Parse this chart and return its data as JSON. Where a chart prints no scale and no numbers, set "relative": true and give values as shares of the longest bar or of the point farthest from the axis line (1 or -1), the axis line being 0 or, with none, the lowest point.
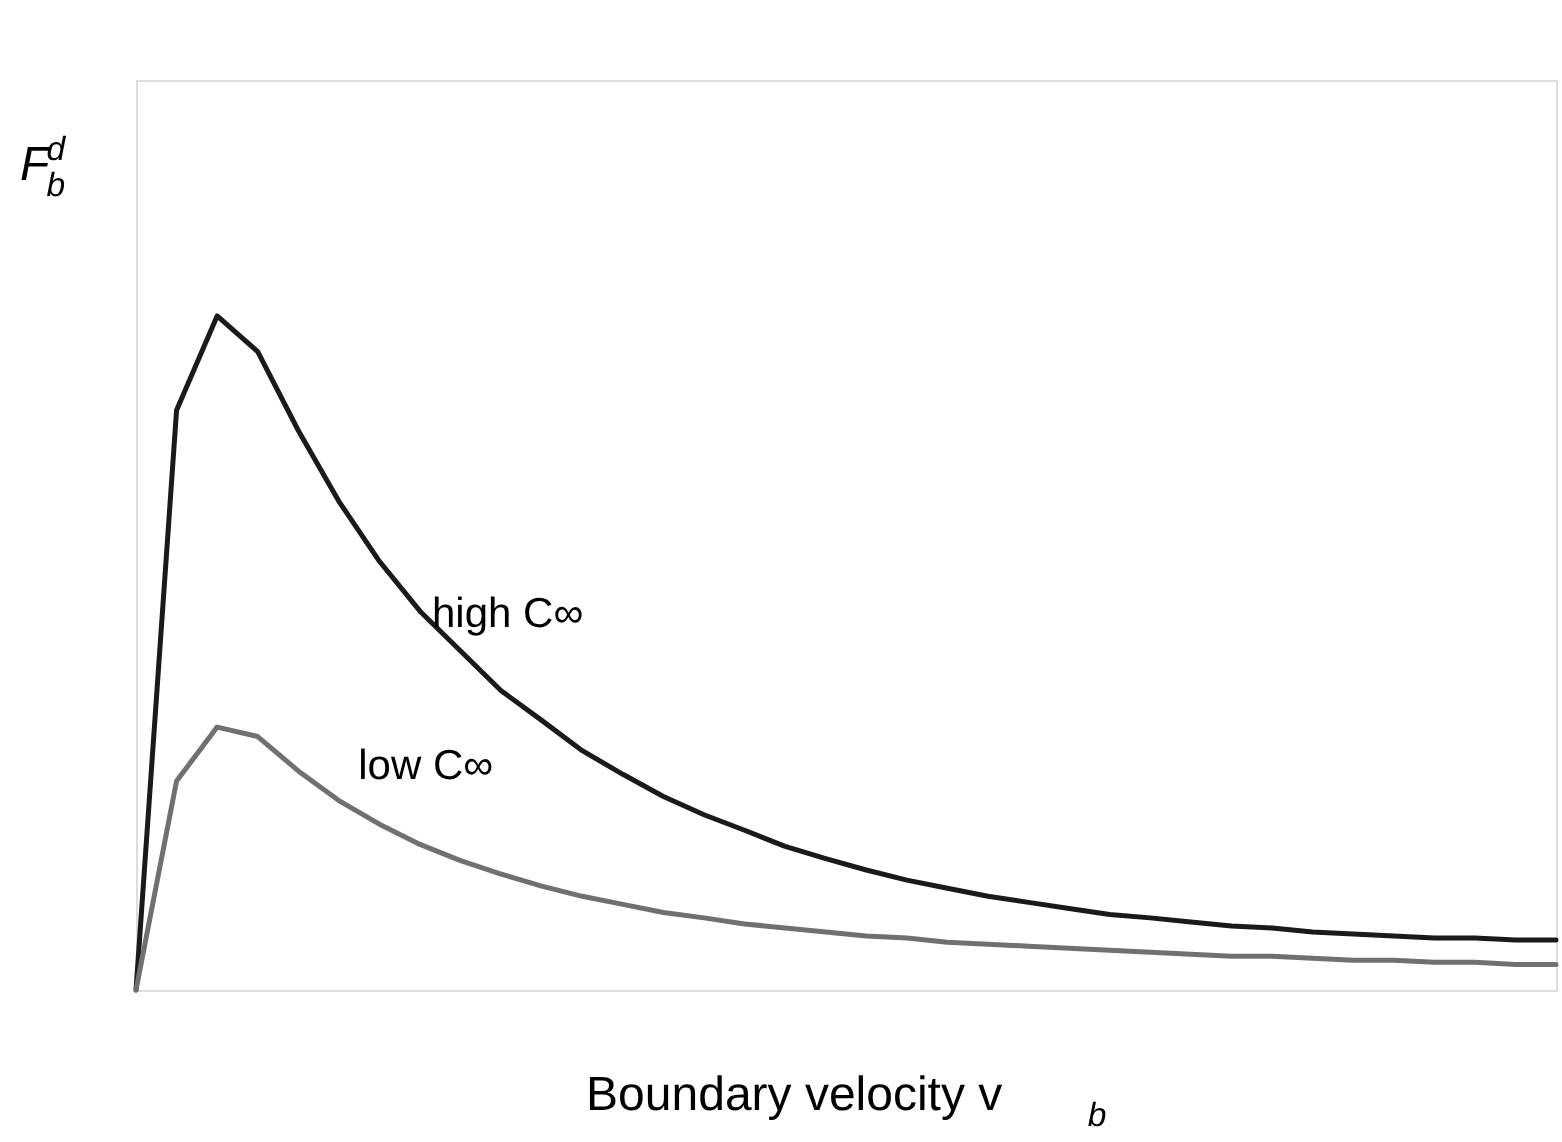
{
  "chart_data": {
    "type": "line",
    "relative": true,
    "xlabel": "Boundary velocity v$_{b}$",
    "ylabel": "F$_{b}$$^{d}$",
    "categories": [
      null,
      null,
      null,
      null,
      null,
      null,
      null,
      null,
      null,
      null,
      null,
      null,
      null,
      null,
      null,
      null,
      null,
      null,
      null,
      null,
      null,
      null,
      null,
      null,
      null,
      null,
      null,
      null,
      null,
      null,
      null,
      null,
      null,
      null,
      null,
      null
    ],
    "series": [
      {
        "name": "high C∞",
        "color": "#1a1a1a",
        "values": [
          0,
          0.86,
          1.0,
          0.947,
          0.83,
          0.725,
          0.636,
          0.562,
          0.503,
          0.444,
          0.4,
          0.355,
          0.32,
          0.287,
          0.26,
          0.237,
          0.213,
          0.195,
          0.178,
          0.163,
          0.151,
          0.139,
          0.13,
          0.121,
          0.112,
          0.107,
          0.101,
          0.095,
          0.092,
          0.086,
          0.083,
          0.08,
          0.077,
          0.077,
          0.074,
          0.074
        ]
      },
      {
        "name": "low C∞",
        "color": "#707070",
        "values": [
          0,
          0.31,
          0.39,
          0.376,
          0.325,
          0.281,
          0.246,
          0.216,
          0.192,
          0.172,
          0.154,
          0.139,
          0.127,
          0.115,
          0.107,
          0.098,
          0.092,
          0.086,
          0.08,
          0.077,
          0.071,
          0.068,
          0.065,
          0.062,
          0.059,
          0.056,
          0.053,
          0.05,
          0.05,
          0.047,
          0.044,
          0.044,
          0.041,
          0.041,
          0.038,
          0.038
        ]
      }
    ]
  }
}
